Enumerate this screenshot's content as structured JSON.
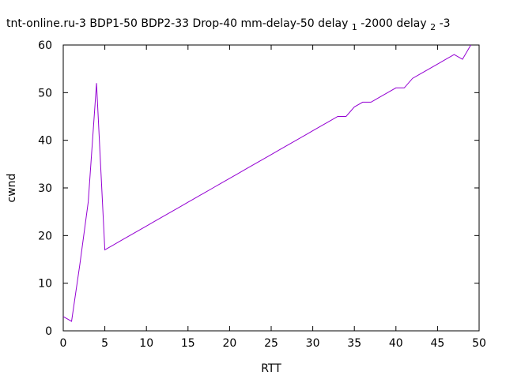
{
  "chart_data": {
    "type": "line",
    "title_parts": {
      "main": "tnt-online.ru-3 BDP1-50 BDP2-33 Drop-40 mm-delay-50 delay",
      "sub1": "1",
      "mid": "-2000 delay",
      "sub2": "2",
      "end": "-3"
    },
    "xlabel": "RTT",
    "ylabel": "cwnd",
    "xlim": [
      0,
      50
    ],
    "ylim": [
      0,
      60
    ],
    "xticks": [
      0,
      5,
      10,
      15,
      20,
      25,
      30,
      35,
      40,
      45,
      50
    ],
    "yticks": [
      0,
      10,
      20,
      30,
      40,
      50,
      60
    ],
    "grid": false,
    "series": [
      {
        "color": "#9400d3",
        "x": [
          0,
          1,
          2,
          3,
          4,
          5,
          6,
          7,
          8,
          9,
          10,
          11,
          12,
          13,
          14,
          15,
          16,
          17,
          18,
          19,
          20,
          21,
          22,
          23,
          24,
          25,
          26,
          27,
          28,
          29,
          30,
          31,
          32,
          33,
          34,
          35,
          36,
          37,
          38,
          39,
          40,
          41,
          42,
          43,
          44,
          45,
          46,
          47,
          48,
          49
        ],
        "y": [
          3,
          2,
          14,
          27,
          52,
          17,
          18,
          19,
          20,
          21,
          22,
          23,
          24,
          25,
          26,
          27,
          28,
          29,
          30,
          31,
          32,
          33,
          34,
          35,
          36,
          37,
          38,
          39,
          40,
          41,
          42,
          43,
          44,
          45,
          45,
          47,
          48,
          48,
          49,
          50,
          51,
          51,
          53,
          54,
          55,
          56,
          57,
          58,
          57,
          60
        ]
      }
    ]
  }
}
